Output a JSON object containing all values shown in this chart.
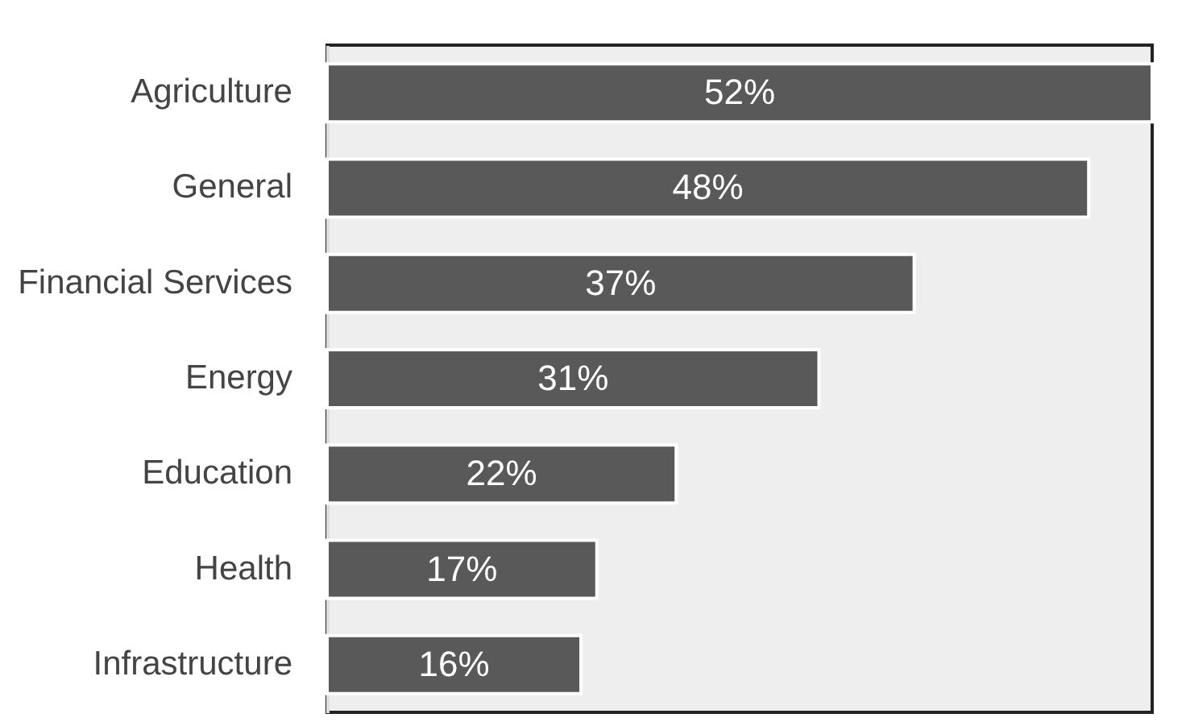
{
  "chart_data": {
    "type": "bar",
    "orientation": "horizontal",
    "categories": [
      "Agriculture",
      "General",
      "Financial Services",
      "Energy",
      "Education",
      "Health",
      "Infrastructure"
    ],
    "values": [
      52,
      48,
      37,
      31,
      22,
      17,
      16
    ],
    "value_labels": [
      "52%",
      "48%",
      "37%",
      "31%",
      "22%",
      "17%",
      "16%"
    ],
    "color": "#595959",
    "grid": false
  }
}
